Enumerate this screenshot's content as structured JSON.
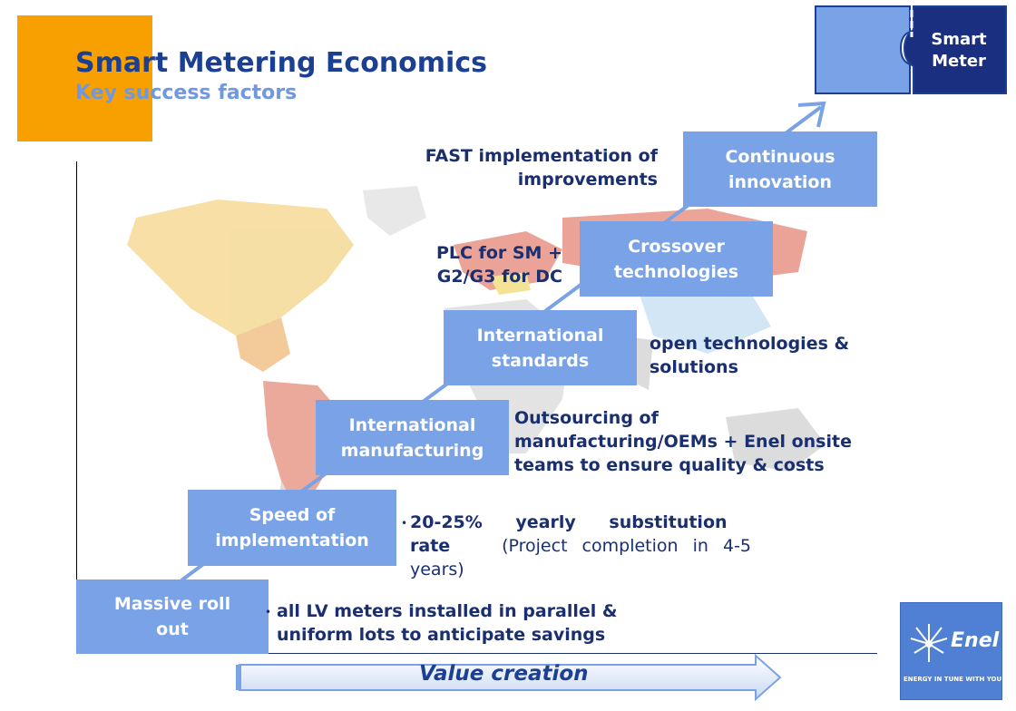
{
  "title": "Smart Metering Economics",
  "subtitle": "Key success factors",
  "smart_meter": {
    "label_line1": "Smart",
    "label_line2": "Meter"
  },
  "steps": [
    {
      "label_line1": "Massive roll",
      "label_line2": "out"
    },
    {
      "label_line1": "Speed of",
      "label_line2": "implementation"
    },
    {
      "label_line1": "International",
      "label_line2": "manufacturing"
    },
    {
      "label_line1": "International",
      "label_line2": "standards"
    },
    {
      "label_line1": "Crossover",
      "label_line2": "technologies"
    },
    {
      "label_line1": "Continuous",
      "label_line2": "innovation"
    }
  ],
  "notes": {
    "rollout_line1": "all LV meters installed in parallel  &",
    "rollout_line2": "uniform lots to anticipate savings",
    "speed_bold": "20-25% yearly substitution",
    "speed_bold2": "rate",
    "speed_rest": "(Project completion in 4-5",
    "speed_rest2": "years)",
    "manufacturing_line1": "Outsourcing of",
    "manufacturing_line2": "manufacturing/OEMs + Enel onsite",
    "manufacturing_line3": "teams to ensure quality & costs",
    "standards_line1": "open technologies &",
    "standards_line2": "solutions",
    "crossover_line1": "PLC for SM +",
    "crossover_line2": "G2/G3 for DC",
    "innovation_line1": "FAST implementation of",
    "innovation_line2": "improvements"
  },
  "value_creation": "Value creation",
  "logo": {
    "word": "Enel",
    "tagline": "ENERGY IN TUNE WITH YOU."
  },
  "colors": {
    "title": "#1a3f93",
    "subtitle": "#6f98e0",
    "step_box": "#7aa2e6",
    "orange": "#f7a000",
    "dark_blue": "#1a2f70"
  }
}
